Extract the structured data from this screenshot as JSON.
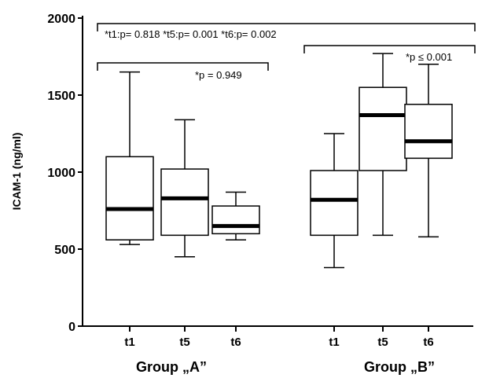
{
  "chart_data": {
    "type": "box",
    "ylabel": "ICAM-1 (ng/ml)",
    "ylim": [
      0,
      2000
    ],
    "yticks": [
      0,
      500,
      1000,
      1500,
      2000
    ],
    "groups": [
      {
        "label": "Group „A”",
        "boxes": [
          {
            "category": "t1",
            "min": 530,
            "q1": 560,
            "median": 760,
            "q3": 1100,
            "max": 1650
          },
          {
            "category": "t5",
            "min": 450,
            "q1": 590,
            "median": 830,
            "q3": 1020,
            "max": 1340
          },
          {
            "category": "t6",
            "min": 560,
            "q1": 600,
            "median": 650,
            "q3": 780,
            "max": 870
          }
        ]
      },
      {
        "label": "Group „B”",
        "boxes": [
          {
            "category": "t1",
            "min": 380,
            "q1": 590,
            "median": 820,
            "q3": 1010,
            "max": 1250
          },
          {
            "category": "t5",
            "min": 590,
            "q1": 1010,
            "median": 1370,
            "q3": 1550,
            "max": 1770
          },
          {
            "category": "t6",
            "min": 580,
            "q1": 1090,
            "median": 1200,
            "q3": 1440,
            "max": 1700
          }
        ]
      }
    ],
    "annotations": [
      {
        "text": "*t1:p= 0.818  *t5:p= 0.001  *t6:p= 0.002",
        "spans": "all"
      },
      {
        "text": "*p = 0.949",
        "spans": "Group „A”"
      },
      {
        "text": "*p ≤ 0.001",
        "spans": "Group „B”"
      }
    ],
    "grid": false,
    "legend": "none"
  }
}
